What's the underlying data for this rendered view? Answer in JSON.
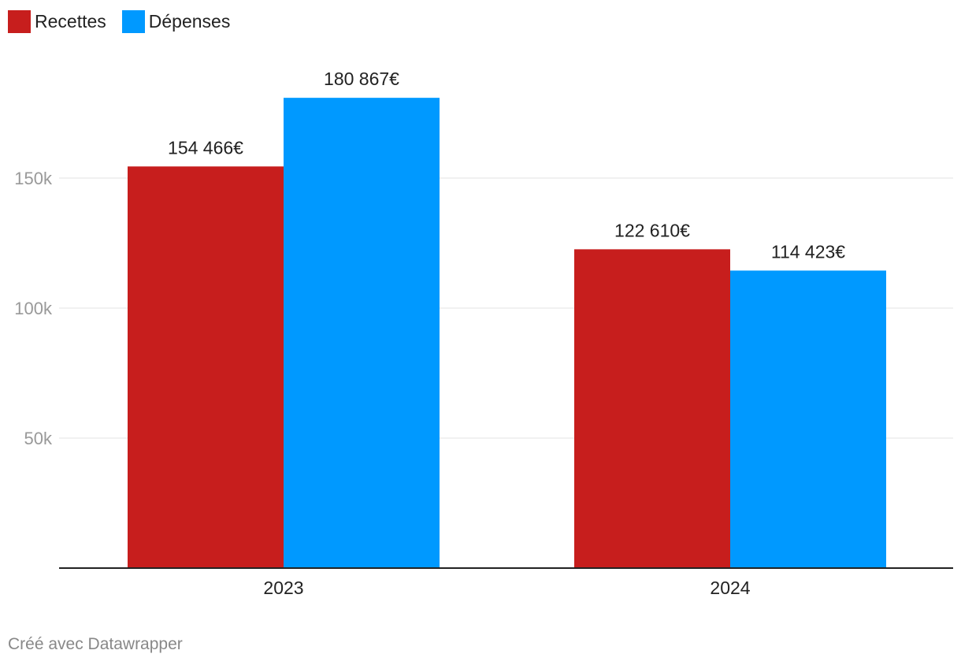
{
  "chart_data": {
    "type": "bar",
    "categories": [
      "2023",
      "2024"
    ],
    "series": [
      {
        "name": "Recettes",
        "color": "#c71e1d",
        "values": [
          154466,
          122610
        ],
        "labels": [
          "154 466€",
          "122 610€"
        ]
      },
      {
        "name": "Dépenses",
        "color": "#0099ff",
        "values": [
          180867,
          114423
        ],
        "labels": [
          "180 867€",
          "114 423€"
        ]
      }
    ],
    "ylim": [
      0,
      200000
    ],
    "yticks": [
      {
        "value": 50000,
        "label": "50k"
      },
      {
        "value": 100000,
        "label": "100k"
      },
      {
        "value": 150000,
        "label": "150k"
      }
    ],
    "grid": true,
    "legend": "top-left",
    "title": "",
    "xlabel": "",
    "ylabel": ""
  },
  "footer": {
    "credit": "Créé avec Datawrapper"
  }
}
